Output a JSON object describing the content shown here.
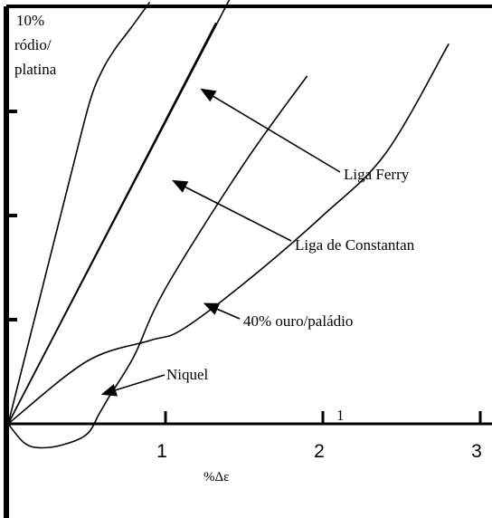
{
  "chart_data": {
    "type": "line",
    "title": "",
    "xlabel": "%Δε",
    "ylabel": [
      "10%",
      "ródio/",
      "platina"
    ],
    "xlim": [
      0,
      3
    ],
    "ylim": [
      -0.5,
      4
    ],
    "x_ticks": [
      1,
      2,
      3
    ],
    "x_tick_labels": [
      "1",
      "2",
      "3"
    ],
    "y_ticks": [
      1,
      2,
      3
    ],
    "grid": false,
    "legend": "none",
    "series": [
      {
        "name": "10% ródio/platina",
        "x": [
          0,
          0.2,
          0.4,
          0.52,
          0.6,
          0.68,
          0.78,
          0.9
        ],
        "y": [
          0,
          1.2,
          2.4,
          3.1,
          3.4,
          3.6,
          3.8,
          4.05
        ]
      },
      {
        "name": "Liga Ferry",
        "x": [
          0,
          1.45
        ],
        "y": [
          0,
          4.2
        ]
      },
      {
        "name": "Liga de Constantan",
        "x": [
          0,
          1.32
        ],
        "y": [
          0,
          3.85
        ]
      },
      {
        "name": "40% ouro/paládio",
        "x": [
          0,
          0.5,
          0.9,
          1.1,
          1.5,
          2.0,
          2.4,
          2.8
        ],
        "y": [
          0,
          0.6,
          0.8,
          0.9,
          1.35,
          2.0,
          2.6,
          3.65
        ]
      },
      {
        "name": "Niquel",
        "x": [
          0,
          0.1,
          0.2,
          0.35,
          0.5,
          0.58,
          0.65,
          0.8,
          1.0,
          1.5,
          1.9
        ],
        "y": [
          0,
          -0.18,
          -0.23,
          -0.2,
          -0.1,
          0.1,
          0.28,
          0.65,
          1.3,
          2.5,
          3.34
        ]
      }
    ],
    "labels": [
      {
        "text": "Liga Ferry",
        "target": "Liga Ferry",
        "point": [
          1.22,
          3.22
        ]
      },
      {
        "text": "Liga de Constantan",
        "target": "Liga de Constantan",
        "point": [
          1.04,
          2.34
        ]
      },
      {
        "text": "40% ouro/paládio",
        "target": "40% ouro/paládio",
        "point": [
          1.24,
          1.16
        ]
      },
      {
        "text": "Niquel",
        "target": "Niquel",
        "point": [
          0.59,
          0.28
        ]
      }
    ],
    "annotations": [
      "1"
    ]
  }
}
